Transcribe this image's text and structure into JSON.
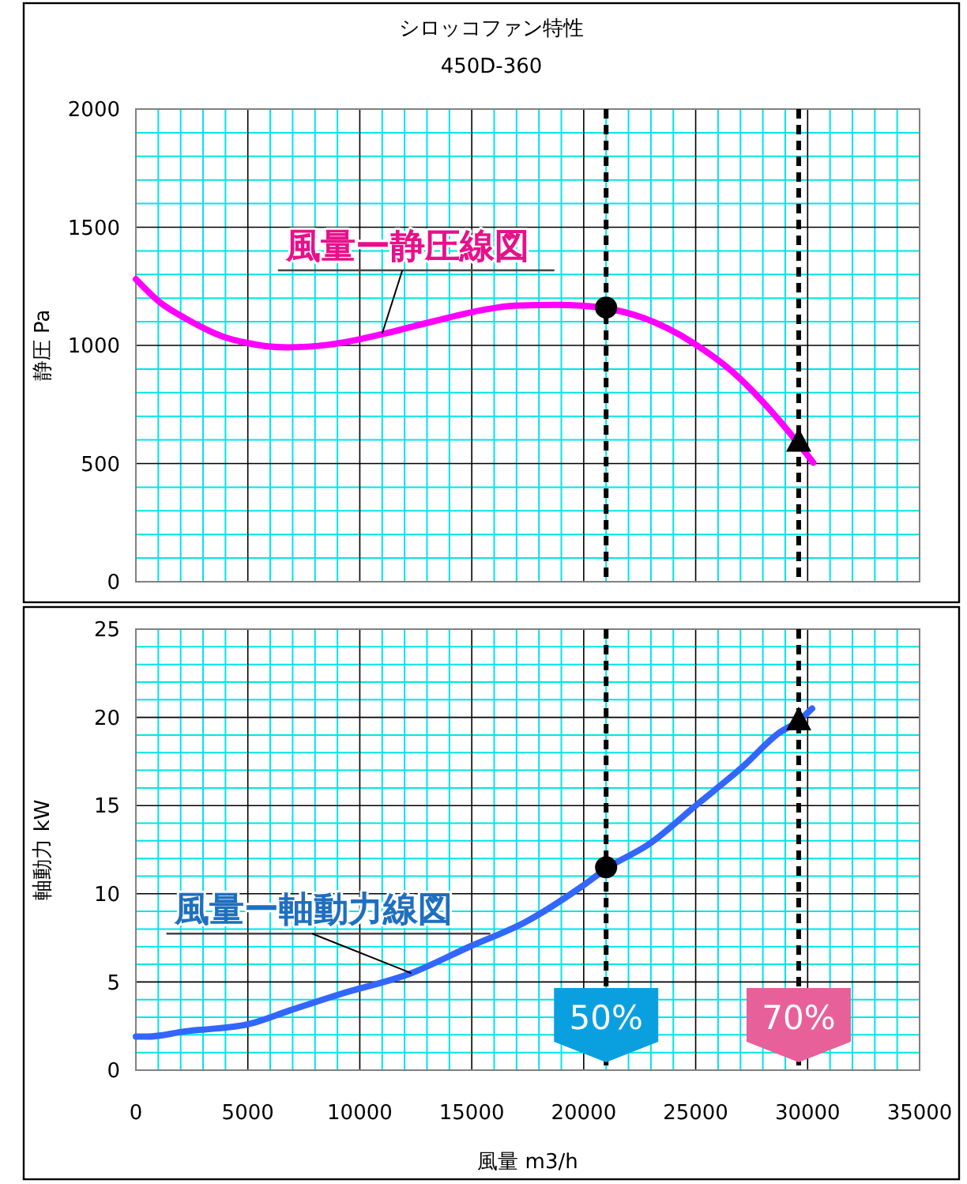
{
  "chart_data": [
    {
      "type": "line",
      "title": "シロッコファン特性",
      "subtitle": "450D-360",
      "ylabel": "静圧 Pa",
      "tick_labels": "y",
      "grid": true,
      "xlim": [
        0,
        35000
      ],
      "ylim": [
        0,
        2000
      ],
      "xticks": [
        0,
        {
          "value": 1000,
          "label": null
        },
        {
          "value": 2000,
          "label": null
        },
        {
          "value": 3000,
          "label": null
        },
        {
          "value": 4000,
          "label": null
        },
        5000,
        {
          "value": 6000,
          "label": null
        },
        {
          "value": 7000,
          "label": null
        },
        {
          "value": 8000,
          "label": null
        },
        {
          "value": 9000,
          "label": null
        },
        10000,
        {
          "value": 11000,
          "label": null
        },
        {
          "value": 12000,
          "label": null
        },
        {
          "value": 13000,
          "label": null
        },
        {
          "value": 14000,
          "label": null
        },
        15000,
        {
          "value": 16000,
          "label": null
        },
        {
          "value": 17000,
          "label": null
        },
        {
          "value": 18000,
          "label": null
        },
        {
          "value": 19000,
          "label": null
        },
        20000,
        {
          "value": 21000,
          "label": null
        },
        {
          "value": 22000,
          "label": null
        },
        {
          "value": 23000,
          "label": null
        },
        {
          "value": 24000,
          "label": null
        },
        25000,
        {
          "value": 26000,
          "label": null
        },
        {
          "value": 27000,
          "label": null
        },
        {
          "value": 28000,
          "label": null
        },
        {
          "value": 29000,
          "label": null
        },
        30000,
        {
          "value": 31000,
          "label": null
        },
        {
          "value": 32000,
          "label": null
        },
        {
          "value": 33000,
          "label": null
        },
        {
          "value": 34000,
          "label": null
        },
        35000
      ],
      "yticks": [
        0,
        {
          "value": 100,
          "label": null
        },
        {
          "value": 200,
          "label": null
        },
        {
          "value": 300,
          "label": null
        },
        {
          "value": 400,
          "label": null
        },
        500,
        {
          "value": 600,
          "label": null
        },
        {
          "value": 700,
          "label": null
        },
        {
          "value": 800,
          "label": null
        },
        {
          "value": 900,
          "label": null
        },
        1000,
        {
          "value": 1100,
          "label": null
        },
        {
          "value": 1200,
          "label": null
        },
        {
          "value": 1300,
          "label": null
        },
        {
          "value": 1400,
          "label": null
        },
        1500,
        {
          "value": 1600,
          "label": null
        },
        {
          "value": 1700,
          "label": null
        },
        {
          "value": 1800,
          "label": null
        },
        {
          "value": 1900,
          "label": null
        },
        2000
      ],
      "series": [
        {
          "type": "line",
          "color": "#ff00ff",
          "marker": "none",
          "x": [
            0,
            1100,
            2200,
            3900,
            5000,
            5800,
            6800,
            8600,
            11100,
            13300,
            15500,
            16900,
            18800,
            19900,
            22700,
            24900,
            26600,
            28000,
            29600,
            30250
          ],
          "values": [
            1280,
            1180,
            1115,
            1037,
            1010,
            997,
            992,
            1003,
            1050,
            1102,
            1150,
            1168,
            1171,
            1168,
            1115,
            1010,
            892,
            761,
            583,
            504
          ]
        },
        {
          "type": "scatter",
          "color": "#000000",
          "marker": "circle",
          "x": [
            21000
          ],
          "values": [
            1160
          ]
        },
        {
          "type": "scatter",
          "color": "#000000",
          "marker": "triangle",
          "x": [
            29600
          ],
          "values": [
            590
          ]
        }
      ],
      "ref_lines": [
        {
          "axis": "x",
          "value": 21000,
          "color": "#000000",
          "line_style": "dashed"
        },
        {
          "axis": "x",
          "value": 29600,
          "color": "#000000",
          "line_style": "dashed"
        }
      ],
      "annotations": [
        {
          "text": "風量ー静圧線図",
          "x": 11000,
          "y": 1050
        }
      ]
    },
    {
      "type": "line",
      "xlabel": "風量 m3/h",
      "ylabel": "軸動力 kW",
      "grid": true,
      "xlim": [
        0,
        35000
      ],
      "ylim": [
        0,
        25
      ],
      "xticks": [
        0,
        {
          "value": 1000,
          "label": null
        },
        {
          "value": 2000,
          "label": null
        },
        {
          "value": 3000,
          "label": null
        },
        {
          "value": 4000,
          "label": null
        },
        5000,
        {
          "value": 6000,
          "label": null
        },
        {
          "value": 7000,
          "label": null
        },
        {
          "value": 8000,
          "label": null
        },
        {
          "value": 9000,
          "label": null
        },
        10000,
        {
          "value": 11000,
          "label": null
        },
        {
          "value": 12000,
          "label": null
        },
        {
          "value": 13000,
          "label": null
        },
        {
          "value": 14000,
          "label": null
        },
        15000,
        {
          "value": 16000,
          "label": null
        },
        {
          "value": 17000,
          "label": null
        },
        {
          "value": 18000,
          "label": null
        },
        {
          "value": 19000,
          "label": null
        },
        20000,
        {
          "value": 21000,
          "label": null
        },
        {
          "value": 22000,
          "label": null
        },
        {
          "value": 23000,
          "label": null
        },
        {
          "value": 24000,
          "label": null
        },
        25000,
        {
          "value": 26000,
          "label": null
        },
        {
          "value": 27000,
          "label": null
        },
        {
          "value": 28000,
          "label": null
        },
        {
          "value": 29000,
          "label": null
        },
        30000,
        {
          "value": 31000,
          "label": null
        },
        {
          "value": 32000,
          "label": null
        },
        {
          "value": 33000,
          "label": null
        },
        {
          "value": 34000,
          "label": null
        },
        35000
      ],
      "yticks": [
        0,
        {
          "value": 1,
          "label": null
        },
        {
          "value": 2,
          "label": null
        },
        {
          "value": 3,
          "label": null
        },
        {
          "value": 4,
          "label": null
        },
        5,
        {
          "value": 6,
          "label": null
        },
        {
          "value": 7,
          "label": null
        },
        {
          "value": 8,
          "label": null
        },
        {
          "value": 9,
          "label": null
        },
        10,
        {
          "value": 11,
          "label": null
        },
        {
          "value": 12,
          "label": null
        },
        {
          "value": 13,
          "label": null
        },
        {
          "value": 14,
          "label": null
        },
        15,
        {
          "value": 16,
          "label": null
        },
        {
          "value": 17,
          "label": null
        },
        {
          "value": 18,
          "label": null
        },
        {
          "value": 19,
          "label": null
        },
        20,
        {
          "value": 21,
          "label": null
        },
        {
          "value": 22,
          "label": null
        },
        {
          "value": 23,
          "label": null
        },
        {
          "value": 24,
          "label": null
        },
        25
      ],
      "series": [
        {
          "type": "line",
          "color": "#3366ff",
          "marker": "none",
          "x": [
            0,
            500,
            2200,
            5000,
            6900,
            9100,
            12300,
            14900,
            17400,
            19900,
            21100,
            22900,
            25100,
            27100,
            28700,
            29600,
            30200
          ],
          "values": [
            1.9,
            1.9,
            2.2,
            2.6,
            3.4,
            4.3,
            5.5,
            7.0,
            8.4,
            10.4,
            11.5,
            12.8,
            15.1,
            17.2,
            19.1,
            19.8,
            20.5
          ]
        },
        {
          "type": "scatter",
          "color": "#000000",
          "marker": "circle",
          "x": [
            21000
          ],
          "values": [
            11.5
          ]
        },
        {
          "type": "scatter",
          "color": "#000000",
          "marker": "triangle",
          "x": [
            29600
          ],
          "values": [
            19.8
          ]
        }
      ],
      "ref_lines": [
        {
          "axis": "x",
          "value": 21000,
          "color": "#000000",
          "line_style": "dashed"
        },
        {
          "axis": "x",
          "value": 29600,
          "color": "#000000",
          "line_style": "dashed"
        }
      ],
      "annotations": [
        {
          "text": "風量ー軸動力線図",
          "x": 12300,
          "y": 5.5
        },
        {
          "text": "50%",
          "x": 21000
        },
        {
          "text": "70%",
          "x": 29600
        }
      ]
    }
  ]
}
